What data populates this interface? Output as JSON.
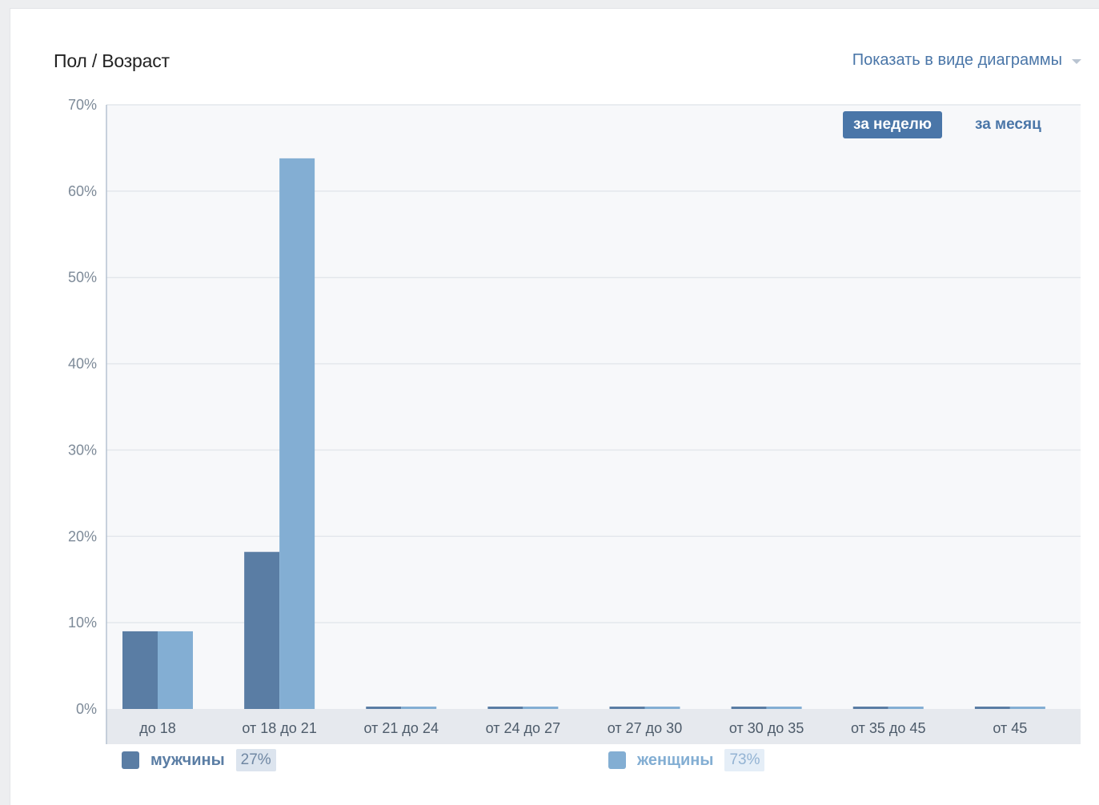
{
  "header": {
    "title": "Пол / Возраст",
    "view_toggle_label": "Показать в виде диаграммы"
  },
  "period_tabs": {
    "week_label": "за неделю",
    "month_label": "за месяц",
    "active": "week"
  },
  "colors": {
    "male": "#5a7da4",
    "female": "#83aed3",
    "accent": "#4a76a8",
    "plot_bg": "#f7f8fa",
    "axis_band": "#e6e9ee"
  },
  "legend": {
    "male_label": "мужчины",
    "male_pct": "27%",
    "female_label": "женщины",
    "female_pct": "73%"
  },
  "chart_data": {
    "type": "bar",
    "categories": [
      "до 18",
      "от 18 до 21",
      "от 21 до 24",
      "от 24 до 27",
      "от 27 до 30",
      "от 30 до 35",
      "от 35 до 45",
      "от 45"
    ],
    "series": [
      {
        "name": "мужчины",
        "values": [
          9.0,
          18.2,
          0,
          0,
          0,
          0,
          0,
          0
        ]
      },
      {
        "name": "женщины",
        "values": [
          9.0,
          63.8,
          0,
          0,
          0,
          0,
          0,
          0
        ]
      }
    ],
    "yticks": [
      "0%",
      "10%",
      "20%",
      "30%",
      "40%",
      "50%",
      "60%",
      "70%"
    ],
    "ylim": [
      0,
      70
    ],
    "xlabel": "",
    "ylabel": "",
    "grid": true,
    "legend_position": "bottom"
  }
}
